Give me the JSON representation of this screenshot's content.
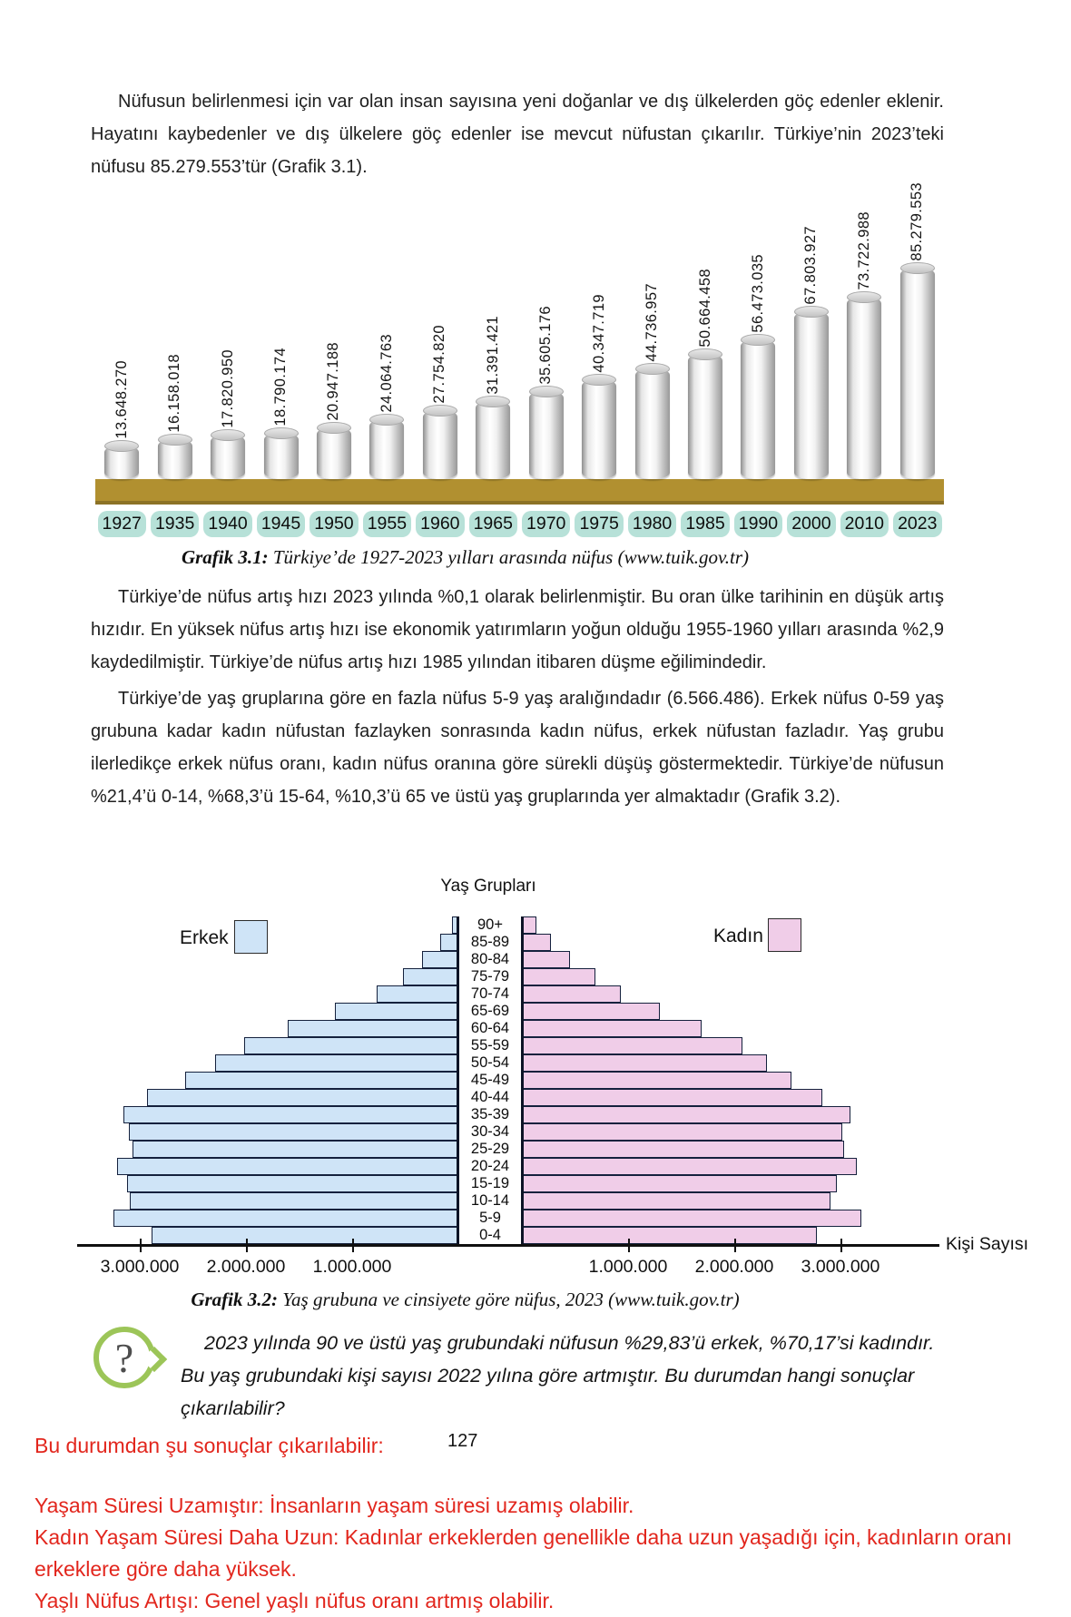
{
  "page": {
    "number": "127",
    "paragraph1": "Nüfusun belirlenmesi için var olan insan sayısına yeni doğanlar ve dış ülkelerden göç edenler eklenir. Hayatını kaybedenler ve dış ülkelere göç edenler ise mevcut nüfustan çıkarılır. Türkiye’nin 2023’teki nüfusu 85.279.553’tür (Grafik 3.1).",
    "paragraph2": "Türkiye’de nüfus artış hızı 2023 yılında %0,1 olarak belirlenmiştir. Bu oran ülke tarihinin en düşük artış hızıdır. En yüksek nüfus artış hızı ise ekonomik yatırımların yoğun olduğu 1955-1960 yılları arasında %2,9 kaydedilmiştir. Türkiye’de nüfus artış hızı 1985 yılından itibaren düşme eğilimindedir.",
    "paragraph3": "Türkiye’de yaş gruplarına göre en fazla nüfus 5-9 yaş aralığındadır (6.566.486). Erkek nüfus 0-59 yaş grubuna kadar kadın nüfustan fazlayken sonrasında kadın nüfus, erkek nüfustan fazladır. Yaş grubu ilerledikçe erkek nüfus oranı, kadın nüfus oranına göre sürekli düşüş göstermektedir. Türkiye’de nüfusun %21,4’ü 0-14, %68,3’ü 15-64, %10,3’ü 65 ve üstü yaş gruplarında yer almaktadır (Grafik 3.2)."
  },
  "chart_data": [
    {
      "type": "bar",
      "title": "Türkiye’de 1927-2023 yılları arasında nüfus",
      "categories": [
        "1927",
        "1935",
        "1940",
        "1945",
        "1950",
        "1955",
        "1960",
        "1965",
        "1970",
        "1975",
        "1980",
        "1985",
        "1990",
        "2000",
        "2010",
        "2023"
      ],
      "values": [
        13648270,
        16158018,
        17820950,
        18790174,
        20947188,
        24064763,
        27754820,
        31391421,
        35605176,
        40347719,
        44736957,
        50664458,
        56473035,
        67803927,
        73722988,
        85279553
      ],
      "value_labels": [
        "13.648.270",
        "16.158.018",
        "17.820.950",
        "18.790.174",
        "20.947.188",
        "24.064.763",
        "27.754.820",
        "31.391.421",
        "35.605.176",
        "40.347.719",
        "44.736.957",
        "50.664.458",
        "56.473.035",
        "67.803.927",
        "73.722.988",
        "85.279.553"
      ],
      "ylim": [
        0,
        85279553
      ],
      "grid": false,
      "legend_position": "none"
    },
    {
      "type": "bar",
      "subtype": "population-pyramid",
      "title": "Yaş Grupları",
      "categories_top_to_bottom": [
        "90+",
        "85-89",
        "80-84",
        "75-79",
        "70-74",
        "65-69",
        "60-64",
        "55-59",
        "50-54",
        "45-49",
        "40-44",
        "35-39",
        "30-34",
        "25-29",
        "20-24",
        "15-19",
        "10-14",
        "5-9",
        "0-4"
      ],
      "series": [
        {
          "name": "Erkek",
          "side": "left",
          "values_estimated": [
            60000,
            170000,
            340000,
            520000,
            770000,
            1160000,
            1610000,
            2020000,
            2290000,
            2570000,
            2930000,
            3150000,
            3100000,
            3070000,
            3210000,
            3120000,
            3090000,
            3250000,
            2890000
          ]
        },
        {
          "name": "Kadın",
          "side": "right",
          "values_estimated": [
            140000,
            270000,
            450000,
            690000,
            930000,
            1300000,
            1690000,
            2080000,
            2310000,
            2540000,
            2830000,
            3090000,
            3020000,
            3030000,
            3150000,
            2970000,
            2910000,
            3200000,
            2780000
          ]
        }
      ],
      "x_ticks_left": [
        "3.000.000",
        "2.000.000",
        "1.000.000"
      ],
      "x_ticks_right": [
        "1.000.000",
        "2.000.000",
        "3.000.000"
      ],
      "x_axis_label": "Kişi Sayısı",
      "xlim_each_side": [
        0,
        3600000
      ],
      "grid": false,
      "legend_position": "top-left-and-top-right"
    }
  ],
  "chart1": {
    "caption_label": "Grafik 3.1:",
    "caption_text": "Türkiye’de 1927-2023 yılları arasında nüfus (www.tuik.gov.tr)",
    "platform_color": "#b19030",
    "year_pill_color": "#b7e1d8"
  },
  "chart2": {
    "title": "Yaş Grupları",
    "legend_male": "Erkek",
    "legend_female": "Kadın",
    "male_color": "#cfe4f7",
    "female_color": "#f0cde8",
    "axis_label": "Kişi Sayısı",
    "caption_label": "Grafik 3.2:",
    "caption_text": "Yaş grubuna ve cinsiyete göre nüfus, 2023 (www.tuik.gov.tr)"
  },
  "question": {
    "icon": "?",
    "icon_color": "#9cc558",
    "text": "2023 yılında 90 ve üstü yaş grubundaki nüfusun %29,83’ü erkek, %70,17’si kadındır. Bu yaş grubundaki kişi sayısı 2022 yılına göre artmıştır. Bu durumdan hangi sonuçlar çıkarılabilir?"
  },
  "answers": {
    "color": "#e2261d",
    "heading": "Bu durumdan şu sonuçlar çıkarılabilir:",
    "items": [
      "Yaşam Süresi Uzamıştır: İnsanların yaşam süresi uzamış olabilir.",
      "Kadın Yaşam Süresi Daha Uzun: Kadınlar erkeklerden genellikle daha uzun yaşadığı için, kadınların oranı erkeklere göre daha yüksek.",
      "Yaşlı Nüfus Artışı: Genel yaşlı nüfus oranı artmış olabilir."
    ]
  }
}
